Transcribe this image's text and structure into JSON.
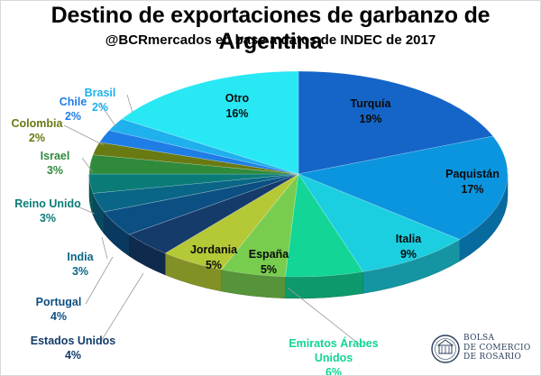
{
  "title": "Destino de exportaciones de garbanzo de Argentina",
  "subtitle": "@BCRmercados en base a datos de INDEC de 2017",
  "logo": {
    "line1": "BOLSA",
    "line2": "DE COMERCIO",
    "line3": "DE ROSARIO"
  },
  "chart_data": {
    "type": "pie",
    "title": "Destino de exportaciones de garbanzo de Argentina",
    "subtitle": "@BCRmercados en base a datos de INDEC de 2017",
    "unit": "%",
    "slices": [
      {
        "name": "Turquía",
        "value": 19,
        "label": "19%",
        "color": "#1565c8"
      },
      {
        "name": "Paquistán",
        "value": 17,
        "label": "17%",
        "color": "#0b95de"
      },
      {
        "name": "Italia",
        "value": 9,
        "label": "9%",
        "color": "#1ccfe0"
      },
      {
        "name": "Emiratos Árabes Unidos",
        "value": 6,
        "label": "6%",
        "color": "#12d596"
      },
      {
        "name": "España",
        "value": 5,
        "label": "5%",
        "color": "#78cd4f"
      },
      {
        "name": "Jordania",
        "value": 5,
        "label": "5%",
        "color": "#b5c835"
      },
      {
        "name": "Estados Unidos",
        "value": 4,
        "label": "4%",
        "color": "#143b6a"
      },
      {
        "name": "Portugal",
        "value": 4,
        "label": "4%",
        "color": "#0c4f82"
      },
      {
        "name": "India",
        "value": 3,
        "label": "3%",
        "color": "#0a6686"
      },
      {
        "name": "Reino Unido",
        "value": 3,
        "label": "3%",
        "color": "#0b7b78"
      },
      {
        "name": "Israel",
        "value": 3,
        "label": "3%",
        "color": "#2f8a3c"
      },
      {
        "name": "Colombia",
        "value": 2,
        "label": "2%",
        "color": "#6a7a12"
      },
      {
        "name": "Chile",
        "value": 2,
        "label": "2%",
        "color": "#1f7de6"
      },
      {
        "name": "Brasil",
        "value": 2,
        "label": "2%",
        "color": "#1fb0ee"
      },
      {
        "name": "Otro",
        "value": 16,
        "label": "16%",
        "color": "#28e8f4"
      }
    ]
  }
}
